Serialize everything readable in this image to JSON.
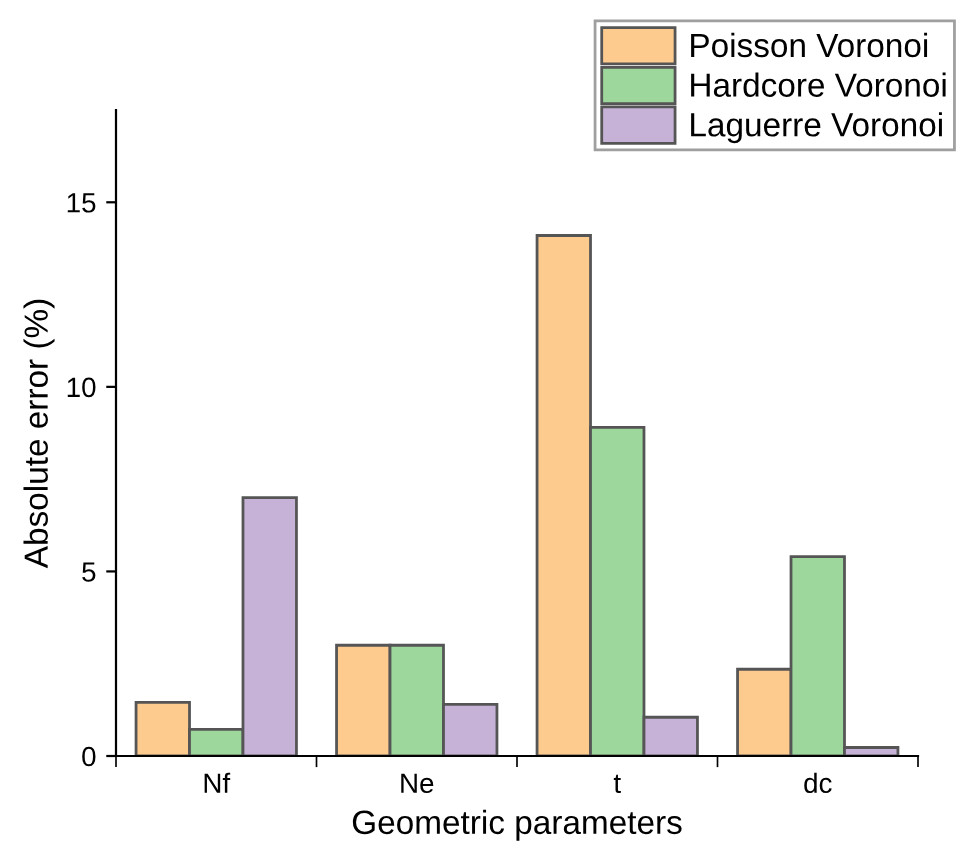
{
  "chart_data": {
    "type": "bar",
    "xlabel": "Geometric parameters",
    "ylabel": "Absolute error (%)",
    "categories": [
      "Nf",
      "Ne",
      "t",
      "dc"
    ],
    "series": [
      {
        "name": "Poisson Voronoi",
        "color": "#fecb8f",
        "values": [
          1.45,
          3.0,
          14.1,
          2.35
        ]
      },
      {
        "name": "Hardcore Voronoi",
        "color": "#9dd79b",
        "values": [
          0.72,
          3.0,
          8.9,
          5.4
        ]
      },
      {
        "name": "Laguerre Voronoi",
        "color": "#c6b2d7",
        "values": [
          7.0,
          1.4,
          1.05,
          0.23
        ]
      }
    ],
    "ylim": [
      0,
      17.5
    ],
    "yticks": [
      0,
      5,
      10,
      15
    ],
    "grid": false,
    "legend": "top right"
  }
}
